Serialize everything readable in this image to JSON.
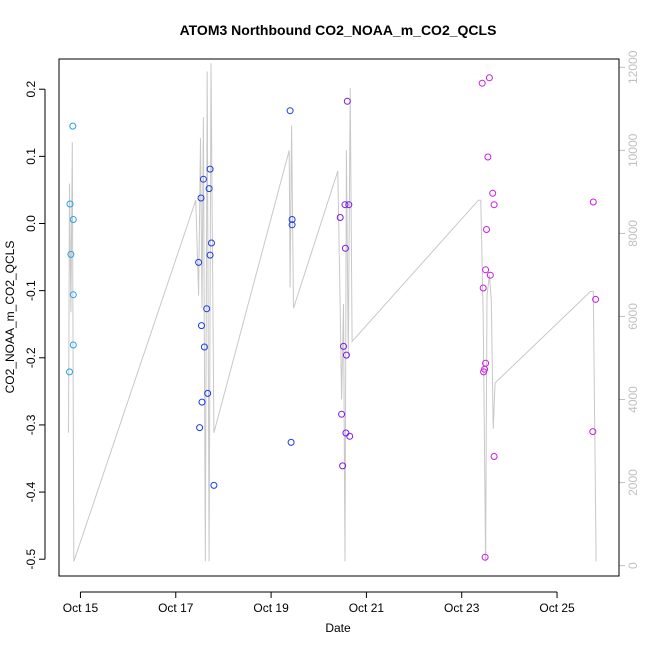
{
  "chart_data": {
    "type": "scatter",
    "title": "ATOM3 Northbound CO2_NOAA_m_CO2_QCLS",
    "xlabel": "Date",
    "ylabel": "CO2_NOAA_m_CO2_QCLS",
    "xlim": [
      14.55,
      26.3
    ],
    "ylim": [
      -0.525,
      0.245
    ],
    "y2lim": [
      -250,
      12200
    ],
    "x_ticks": [
      {
        "value": 15,
        "label": "Oct 15"
      },
      {
        "value": 17,
        "label": "Oct 17"
      },
      {
        "value": 19,
        "label": "Oct 19"
      },
      {
        "value": 21,
        "label": "Oct 21"
      },
      {
        "value": 23,
        "label": "Oct 23"
      },
      {
        "value": 25,
        "label": "Oct 25"
      }
    ],
    "y_ticks": [
      -0.5,
      -0.4,
      -0.3,
      -0.2,
      -0.1,
      0.0,
      0.1,
      0.2
    ],
    "y2_ticks": [
      0,
      2000,
      4000,
      6000,
      8000,
      10000,
      12000
    ],
    "grid": false,
    "legend": "none",
    "point_colors": [
      "#29a3e0",
      "#1a3ce6",
      "#7a1ae6",
      "#cc1ae6"
    ],
    "line_color": "#c8c8c8",
    "series": [
      {
        "color": "#29a3e0",
        "points": [
          [
            14.78,
            0.029
          ],
          [
            14.77,
            -0.221
          ],
          [
            14.8,
            -0.046
          ],
          [
            14.84,
            0.145
          ],
          [
            14.85,
            0.006
          ],
          [
            14.85,
            -0.106
          ],
          [
            14.85,
            -0.181
          ]
        ]
      },
      {
        "color": "#1a3ce6",
        "points": [
          [
            17.48,
            -0.058
          ],
          [
            17.5,
            -0.304
          ],
          [
            17.53,
            0.038
          ],
          [
            17.54,
            -0.152
          ],
          [
            17.55,
            -0.266
          ],
          [
            17.58,
            0.066
          ],
          [
            17.6,
            -0.184
          ],
          [
            17.65,
            -0.127
          ],
          [
            17.67,
            -0.253
          ],
          [
            17.7,
            0.052
          ],
          [
            17.72,
            0.081
          ],
          [
            17.72,
            -0.047
          ],
          [
            17.75,
            -0.029
          ],
          [
            17.8,
            -0.39
          ],
          [
            19.4,
            0.168
          ],
          [
            19.42,
            -0.326
          ],
          [
            19.44,
            0.006
          ],
          [
            19.44,
            -0.002
          ]
        ]
      },
      {
        "color": "#7a1ae6",
        "points": [
          [
            20.45,
            0.009
          ],
          [
            20.48,
            -0.284
          ],
          [
            20.5,
            -0.361
          ],
          [
            20.52,
            -0.183
          ],
          [
            20.55,
            0.028
          ],
          [
            20.56,
            -0.037
          ],
          [
            20.57,
            -0.312
          ],
          [
            20.58,
            -0.196
          ],
          [
            20.6,
            0.182
          ],
          [
            20.63,
            0.028
          ],
          [
            20.65,
            -0.317
          ]
        ]
      },
      {
        "color": "#cc1ae6",
        "points": [
          [
            23.43,
            0.209
          ],
          [
            23.45,
            -0.096
          ],
          [
            23.46,
            -0.221
          ],
          [
            23.48,
            -0.217
          ],
          [
            23.49,
            -0.497
          ],
          [
            23.5,
            -0.208
          ],
          [
            23.5,
            -0.069
          ],
          [
            23.52,
            -0.009
          ],
          [
            23.55,
            0.099
          ],
          [
            23.58,
            0.217
          ],
          [
            23.6,
            -0.077
          ],
          [
            23.65,
            0.045
          ],
          [
            23.68,
            0.028
          ],
          [
            23.68,
            -0.347
          ],
          [
            25.75,
            -0.31
          ],
          [
            25.76,
            0.032
          ],
          [
            25.81,
            -0.113
          ]
        ]
      }
    ],
    "secondary_line": {
      "axis": "right",
      "points": [
        [
          14.75,
          3200
        ],
        [
          14.77,
          9200
        ],
        [
          14.8,
          6100
        ],
        [
          14.83,
          10200
        ],
        [
          14.86,
          100
        ],
        [
          17.42,
          8800
        ],
        [
          17.48,
          6500
        ],
        [
          17.52,
          10300
        ],
        [
          17.55,
          6200
        ],
        [
          17.58,
          10800
        ],
        [
          17.62,
          100
        ],
        [
          17.66,
          11900
        ],
        [
          17.7,
          100
        ],
        [
          17.74,
          12100
        ],
        [
          17.8,
          3200
        ],
        [
          19.38,
          10000
        ],
        [
          19.4,
          6700
        ],
        [
          19.43,
          10600
        ],
        [
          19.47,
          6200
        ],
        [
          20.4,
          9500
        ],
        [
          20.45,
          6200
        ],
        [
          20.48,
          4000
        ],
        [
          20.52,
          6300
        ],
        [
          20.55,
          100
        ],
        [
          20.58,
          10000
        ],
        [
          20.62,
          5000
        ],
        [
          20.66,
          11500
        ],
        [
          20.7,
          5400
        ],
        [
          23.35,
          8800
        ],
        [
          23.4,
          8800
        ],
        [
          23.45,
          6000
        ],
        [
          23.5,
          100
        ],
        [
          23.53,
          6500
        ],
        [
          23.58,
          7000
        ],
        [
          23.62,
          6400
        ],
        [
          23.66,
          3300
        ],
        [
          23.7,
          4400
        ],
        [
          25.7,
          6600
        ],
        [
          25.76,
          6600
        ],
        [
          25.82,
          100
        ]
      ]
    }
  }
}
